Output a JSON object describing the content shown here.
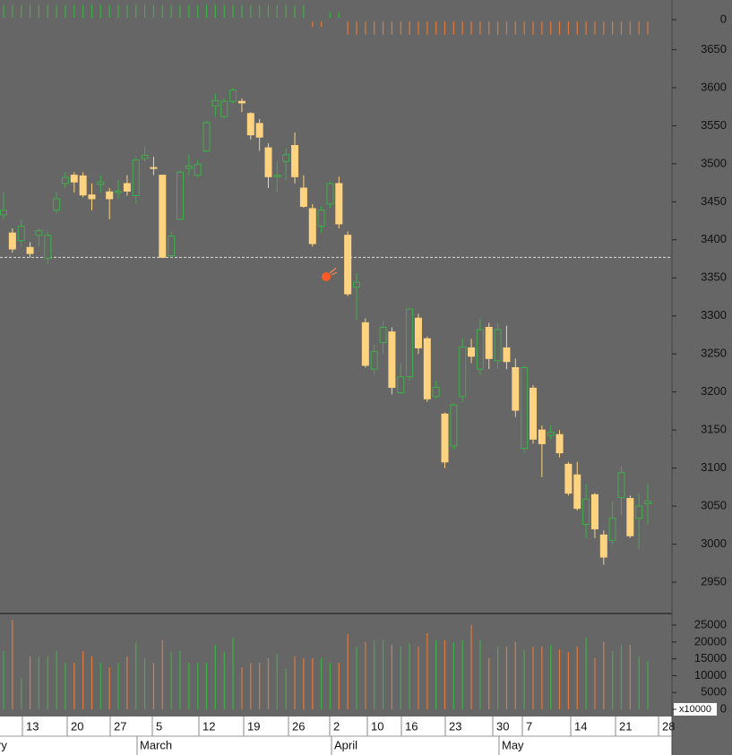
{
  "chart_data": [
    {
      "type": "candlestick",
      "open": [
        3433,
        3409,
        3399,
        3390,
        3406,
        3376,
        3439,
        3474,
        3485,
        3484,
        3459,
        3473,
        3463,
        3462,
        3474,
        3458,
        3507,
        3495,
        3485,
        3379,
        3427,
        3494,
        3485,
        3517,
        3576,
        3562,
        3582,
        3582,
        3566,
        3553,
        3521,
        3483,
        3503,
        3524,
        3468,
        3441,
        3418,
        3447,
        3474,
        3406,
        3338,
        3291,
        3230,
        3265,
        3279,
        3199,
        3220,
        3297,
        3270,
        3194,
        3171,
        3129,
        3194,
        3258,
        3230,
        3285,
        3241,
        3258,
        3232,
        3126,
        3205,
        3150,
        3143,
        3144,
        3105,
        3091,
        3026,
        3065,
        3012,
        3005,
        3061,
        3060,
        3034,
        3053
      ],
      "high": [
        3462,
        3415,
        3427,
        3397,
        3415,
        3411,
        3462,
        3489,
        3489,
        3489,
        3474,
        3485,
        3468,
        3479,
        3485,
        3509,
        3523,
        3509,
        3485,
        3411,
        3491,
        3512,
        3505,
        3556,
        3592,
        3586,
        3600,
        3586,
        3568,
        3559,
        3527,
        3503,
        3521,
        3541,
        3485,
        3447,
        3444,
        3476,
        3483,
        3411,
        3356,
        3297,
        3262,
        3293,
        3285,
        3238,
        3309,
        3303,
        3273,
        3215,
        3173,
        3185,
        3270,
        3270,
        3297,
        3291,
        3291,
        3287,
        3244,
        3235,
        3209,
        3156,
        3156,
        3150,
        3108,
        3108,
        3079,
        3067,
        3018,
        3056,
        3102,
        3064,
        3067,
        3079
      ],
      "low": [
        3427,
        3383,
        3391,
        3377,
        3391,
        3368,
        3435,
        3468,
        3462,
        3456,
        3439,
        3462,
        3427,
        3454,
        3458,
        3447,
        3503,
        3485,
        3377,
        3377,
        3427,
        3485,
        3482,
        3515,
        3562,
        3560,
        3579,
        3568,
        3532,
        3517,
        3468,
        3462,
        3479,
        3474,
        3442,
        3391,
        3409,
        3442,
        3415,
        3326,
        3295,
        3232,
        3223,
        3250,
        3197,
        3197,
        3215,
        3250,
        3187,
        3191,
        3100,
        3124,
        3187,
        3238,
        3223,
        3230,
        3230,
        3230,
        3167,
        3120,
        3132,
        3088,
        3138,
        3114,
        3064,
        3044,
        3008,
        3008,
        2973,
        2999,
        3038,
        3008,
        2994,
        3026
      ],
      "close": [
        3439,
        3388,
        3418,
        3382,
        3412,
        3406,
        3454,
        3482,
        3476,
        3459,
        3454,
        3476,
        3454,
        3464,
        3464,
        3505,
        3511,
        3494,
        3377,
        3405,
        3489,
        3497,
        3499,
        3554,
        3583,
        3582,
        3597,
        3580,
        3538,
        3535,
        3483,
        3485,
        3512,
        3483,
        3444,
        3395,
        3439,
        3474,
        3421,
        3329,
        3344,
        3235,
        3253,
        3285,
        3206,
        3220,
        3309,
        3258,
        3191,
        3206,
        3108,
        3183,
        3259,
        3247,
        3282,
        3244,
        3282,
        3240,
        3176,
        3232,
        3138,
        3132,
        3147,
        3120,
        3067,
        3047,
        3059,
        3020,
        2983,
        3034,
        3094,
        3011,
        3050,
        3056
      ],
      "up_color": "#3fae49",
      "down_color": "#ffd37f",
      "ylim": [
        2910,
        3667
      ],
      "yticks": [
        2950,
        3000,
        3050,
        3100,
        3150,
        3200,
        3250,
        3300,
        3350,
        3400,
        3450,
        3500,
        3550,
        3600,
        3650
      ],
      "price_line": 3377
    },
    {
      "type": "bar",
      "values": [
        17300,
        26600,
        9300,
        15700,
        15700,
        15700,
        17300,
        13800,
        13800,
        17300,
        15700,
        13800,
        12500,
        13800,
        15700,
        20000,
        15200,
        13800,
        20500,
        17000,
        17300,
        13800,
        13800,
        13800,
        19200,
        17000,
        21300,
        12500,
        13800,
        13800,
        15200,
        16500,
        12000,
        15700,
        15200,
        15200,
        15200,
        13800,
        13800,
        22300,
        18600,
        20000,
        20500,
        20500,
        19200,
        18600,
        19700,
        18600,
        22600,
        20500,
        20500,
        20000,
        20500,
        25000,
        20500,
        15200,
        18600,
        18600,
        20000,
        17800,
        18600,
        18600,
        19200,
        17800,
        17000,
        18600,
        21300,
        15200,
        20000,
        17300,
        19200,
        19200,
        15700,
        14400
      ],
      "up_color": "#3fae49",
      "down_color": "#e07a3c",
      "ylim": [
        0,
        28200
      ],
      "yticks": [
        0,
        5000,
        10000,
        15000,
        20000,
        25000
      ],
      "unit_label": "x10000"
    },
    {
      "type": "bar",
      "values": [
        1,
        1,
        1,
        1,
        1,
        1,
        1,
        1,
        1,
        1,
        1,
        1,
        1,
        1,
        1,
        1,
        1,
        1,
        1,
        1,
        1,
        1,
        1,
        1,
        1,
        1,
        1,
        1,
        1,
        1,
        1,
        1,
        1,
        1,
        1,
        -0.5,
        -0.5,
        0.5,
        0.5,
        -1,
        -1,
        -1,
        -1,
        -1,
        -1,
        -1,
        -1,
        -1,
        -1,
        -1,
        -1,
        -1,
        -1,
        -1,
        -1,
        -1,
        -1,
        -1,
        -1,
        -1,
        -1,
        -1,
        -1,
        -1,
        -1,
        -1,
        -1,
        -1,
        -1,
        -1,
        -1,
        -1,
        -1,
        -1
      ],
      "up_color": "#3fae49",
      "down_color": "#e07a3c",
      "ylim": [
        -1.2,
        1.2
      ],
      "yticks": [
        0
      ]
    }
  ],
  "x_axis": {
    "day_labels": [
      "13",
      "20",
      "27",
      "5",
      "12",
      "19",
      "26",
      "2",
      "10",
      "16",
      "23",
      "30",
      "7",
      "14",
      "21",
      "28"
    ],
    "month_labels": [
      "ry",
      "March",
      "April",
      "May"
    ]
  }
}
